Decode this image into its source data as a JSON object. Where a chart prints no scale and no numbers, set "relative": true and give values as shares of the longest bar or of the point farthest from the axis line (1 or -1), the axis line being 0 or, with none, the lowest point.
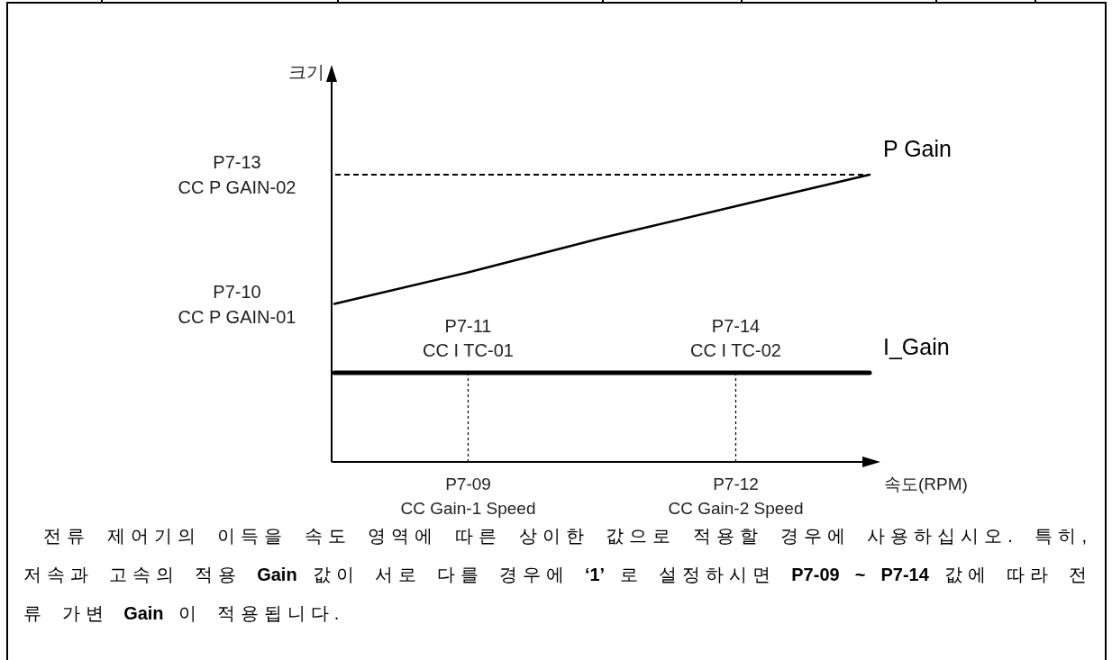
{
  "chart_data": {
    "type": "line",
    "relative": true,
    "xlabel": "속도(RPM)",
    "categories": [
      null,
      "P7-09\nCC Gain-1 Speed",
      null,
      "P7-12\nCC Gain-2 Speed",
      null
    ],
    "series": [
      {
        "name": "P Gain",
        "color": "#000000",
        "values": [
          0.55,
          0.66,
          0.78,
          0.89,
          1
        ]
      },
      {
        "name": "I_Gain",
        "color": "#000000",
        "values": [
          0.31,
          0.31,
          0.31,
          0.31,
          0.31
        ]
      }
    ],
    "ref_lines": [
      {
        "axis": "y",
        "value": 1,
        "label": "P7-13\nCC P GAIN-02",
        "line_style": "dashed",
        "color": "#000000"
      },
      {
        "axis": "x",
        "value": "P7-09\nCC Gain-1 Speed",
        "line_style": "dashed",
        "color": "#000000"
      },
      {
        "axis": "x",
        "value": "P7-12\nCC Gain-2 Speed",
        "line_style": "dashed",
        "color": "#000000"
      }
    ],
    "annotations": [
      "크기",
      "P7-10\nCC P GAIN-01",
      {
        "text": "P7-11\nCC I TC-01",
        "x": "P7-09\nCC Gain-1 Speed",
        "y": 0.31
      },
      {
        "text": "P7-14\nCC I TC-02",
        "x": "P7-12\nCC Gain-2 Speed",
        "y": 0.31
      },
      "전류 제어기의 이득을 속도 영역에 따른 상이한 값으로 적용할 경우에 사용하십시오. 특히, 저속과 고속의 적용 Gain 값이 서로 다를 경우에 ‘1’ 로 설정하시면 P7-09 ~ P7-14 값에 따라 전류 가변 Gain 이 적용됩니다."
    ]
  }
}
